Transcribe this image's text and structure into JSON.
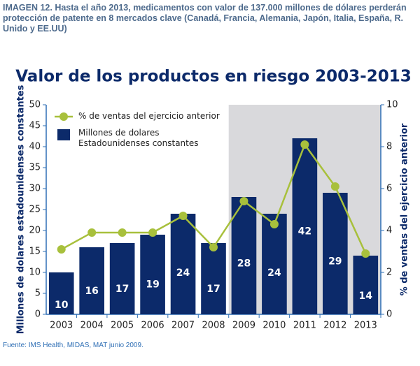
{
  "header": "IMAGEN 12. Hasta el año 2013, medicamentos con valor de 137.000 millones de dólares perderán protección de patente en 8 mercados clave (Canadá, Francia, Alemania, Japón, Italia, España, R. Unido y EE.UU)",
  "footer": "Fuente: IMS Health, MIDAS, MAT junio 2009.",
  "chart_data": {
    "type": "bar",
    "title": "Valor de los productos en riesgo 2003-2013",
    "y_label": "Millones de dolares estadounidenses constantes",
    "y2_label": "% de ventas del ejercicio anterior",
    "categories": [
      "2003",
      "2004",
      "2005",
      "2006",
      "2007",
      "2008",
      "2009",
      "2010",
      "2011",
      "2012",
      "2013"
    ],
    "shade_from": "2009",
    "series": [
      {
        "name": "Millones de dolares Estadounidenses constantes",
        "type": "bar",
        "color": "#0c2a6a",
        "values": [
          10,
          16,
          17,
          19,
          24,
          17,
          28,
          24,
          42,
          29,
          14
        ]
      },
      {
        "name": "% de ventas del ejercicio anterior",
        "type": "line",
        "axis": "y2",
        "color": "#a8c03c",
        "values": [
          3.1,
          3.9,
          3.9,
          3.9,
          4.7,
          3.2,
          5.4,
          4.3,
          8.1,
          6.1,
          2.9
        ]
      }
    ],
    "ylim": [
      0,
      50
    ],
    "yticks": [
      0,
      5,
      10,
      15,
      20,
      25,
      30,
      35,
      40,
      45,
      50
    ],
    "y2lim": [
      0,
      10
    ],
    "y2ticks": [
      0,
      2,
      4,
      6,
      8,
      10
    ],
    "legend": "upper left"
  }
}
